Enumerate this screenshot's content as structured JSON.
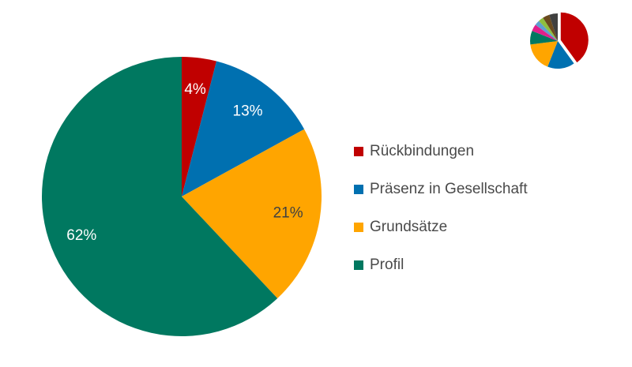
{
  "chart_data": {
    "type": "pie",
    "title": "",
    "categories": [
      "Rückbindungen",
      "Präsenz in Gesellschaft",
      "Grundsätze",
      "Profil"
    ],
    "values": [
      4,
      13,
      21,
      62
    ],
    "labels": [
      "4%",
      "13%",
      "21%",
      "62%"
    ],
    "colors": [
      "#c00000",
      "#0070b0",
      "#ffa500",
      "#007860"
    ],
    "label_colors": [
      "#ffffff",
      "#ffffff",
      "#404040",
      "#ffffff"
    ],
    "legend": "right"
  },
  "thumbnail": {
    "icon": "pie-chart-thumbnail-icon",
    "slices": [
      {
        "value": 40,
        "color": "#c00000"
      },
      {
        "value": 16,
        "color": "#0070b0"
      },
      {
        "value": 17,
        "color": "#ffa500"
      },
      {
        "value": 8,
        "color": "#007860"
      },
      {
        "value": 4,
        "color": "#e0208a"
      },
      {
        "value": 3,
        "color": "#5fa0d0"
      },
      {
        "value": 3,
        "color": "#8fbf3f"
      },
      {
        "value": 4,
        "color": "#6b4a1e"
      },
      {
        "value": 5,
        "color": "#404040"
      }
    ]
  }
}
